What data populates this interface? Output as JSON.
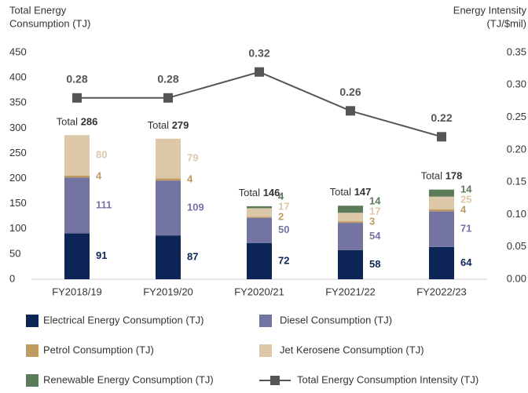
{
  "chart_data": {
    "type": "bar",
    "stacked": true,
    "y_label": [
      "Total Energy",
      "Consumption (TJ)"
    ],
    "y2_label": [
      "Energy Intensity",
      "(TJ/$mil)"
    ],
    "categories": [
      "FY2018/19",
      "FY2019/20",
      "FY2020/21",
      "FY2021/22",
      "FY2022/23"
    ],
    "series": [
      {
        "name": "Electrical Energy Consumption (TJ)",
        "color": "#0d2456",
        "values": [
          91,
          87,
          72,
          58,
          64
        ]
      },
      {
        "name": "Diesel Consumption (TJ)",
        "color": "#7474a3",
        "values": [
          111,
          109,
          50,
          54,
          71
        ]
      },
      {
        "name": "Petrol Consumption (TJ)",
        "color": "#c09a5e",
        "values": [
          4,
          4,
          2,
          3,
          4
        ]
      },
      {
        "name": "Jet Kerosene Consumption (TJ)",
        "color": "#dcc7a8",
        "values": [
          80,
          79,
          17,
          17,
          25
        ]
      },
      {
        "name": "Renewable Energy Consumption (TJ)",
        "color": "#5c7b5a",
        "values": [
          null,
          null,
          4,
          14,
          14
        ]
      },
      {
        "name": "Total Energy Consumption Intensity (TJ)",
        "type": "line",
        "axis": "y2",
        "color": "#555555",
        "values": [
          0.28,
          0.28,
          0.32,
          0.26,
          0.22
        ]
      }
    ],
    "total_label": "Total",
    "totals": [
      286,
      279,
      146,
      147,
      178
    ],
    "ylim": [
      0,
      450
    ],
    "yticks": [
      0,
      50,
      100,
      150,
      200,
      250,
      300,
      350,
      400,
      450
    ],
    "y2lim": [
      0,
      0.35
    ],
    "y2ticks": [
      {
        "value": 0,
        "label": "0.00"
      },
      0.05,
      {
        "value": 0.1,
        "label": "0.10"
      },
      0.15,
      {
        "value": 0.2,
        "label": "0.20"
      },
      0.25,
      {
        "value": 0.3,
        "label": "0.30"
      },
      0.35
    ],
    "grid": false,
    "legend": "bottom"
  }
}
